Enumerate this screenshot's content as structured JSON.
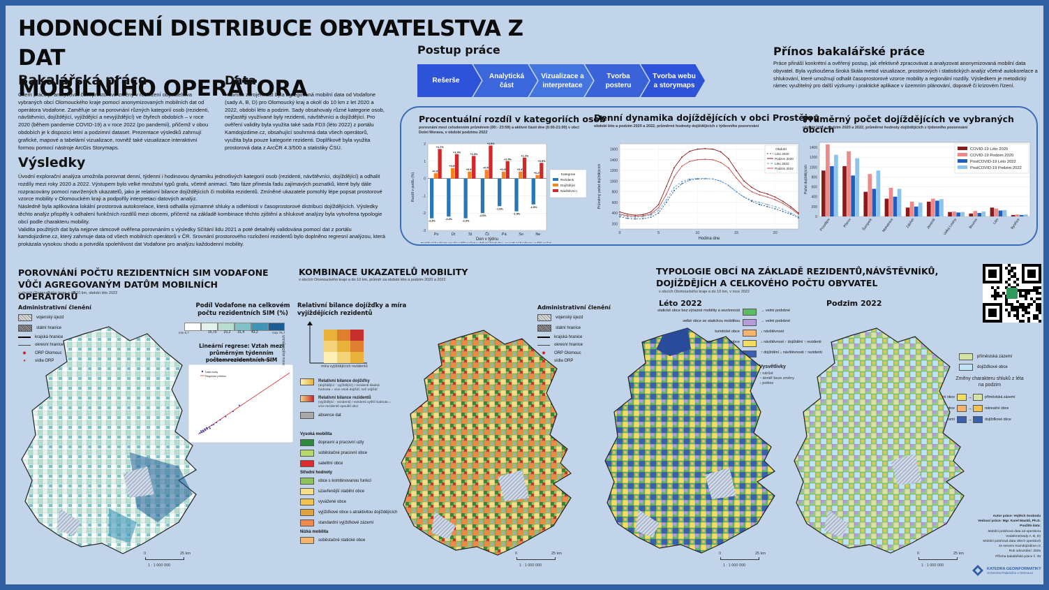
{
  "header": {
    "title_line1": "HODNOCENÍ DISTRIBUCE OBYVATELSTVA Z DAT",
    "title_line2": "MOBILNÍHO OPERÁTORA"
  },
  "bakalarska": {
    "heading": "Bakalářská práce",
    "text": "Cílem práce je analyzovat časoprostorové změny v rozložení obyvatelstva vybraných obcí Olomouckého kraje pomocí anonymizovaných mobilních dat od operátora Vodafone. Zaměřuje se na porovnání různých kategorií osob (rezidenti, návštěvníci, dojíždějící, vyjíždějící a nevyjíždějící) ve čtyřech obdobích – v roce 2020 (během pandemie COVID-19) a v roce 2022 (po pandemii), přičemž v obou obdobích je k dispozici letní a podzimní dataset. Prezentace výsledků zahrnují grafické, mapové a tabelární vizualizace, rovněž také vizualizace interaktivní formou pomocí nástroje ArcGis Storymaps."
  },
  "data_section": {
    "heading": "Data",
    "text": "Hlavním zdrojem dat byla agregovaná mobilní data od Vodafone (sady A, B, D) pro Olomoucký kraj a okolí do 10 km z let 2020 a 2022, období léto a podzim. Sady obsahovaly různé kategorie osob, nejčastěji využívané byly rezidenti, návštěvníci a dojíždějící. Pro ověření validity byla využita také sada FD3 (léto 2022) z portálu Kamdojizdime.cz, obsahující souhrnná data všech operátorů, využita byla pouze kategorie rezidenti. Doplňkově byla využita prostorová data z ArcČR 4.3/500 a statistiky ČSÚ."
  },
  "vysledky": {
    "heading": "Výsledky",
    "text1": "Úvodní explorační analýza umožnila porovnat denní, týdenní i hodinovou dynamiku jednotlivých kategorií osob (rezidenti, návštěvníci, dojíždějící) a odhalit rozdíly mezi roky 2020 a 2022. Výstupem bylo velké množství typů grafu, včetně animací. Tato fáze přinesla řadu zajímavých poznatků, které byly dále rozpracovány pomocí navržených ukazatelů, jako je relativní bilance dojíždějících či mobilita rezidentů. Zmíněné ukazatele pomohly lépe popsat prostorové vzorce mobility v Olomouckém kraji a podpořily interpretaci datových analýz.",
    "text2": "Následně byla aplikována lokální prostorová autokorelace, která odhalila významné shluky a odlehlosti v časoprostorové distribuci dojíždějících. Výsledky těchto analýz přispěly k odhalení funkčních rozdílů mezi obcemi, přičemž na základě kombinace těchto zjištění a shlukové analýzy byla vytvořena typologie obcí podle charakteru mobility.",
    "text3": "Validita použitých dat byla nejprve rámcově ověřena porovnáním s výsledky Sčítání lidu 2021 a poté detailněji validována pomocí dat z portálu kamdojizdime.cz, který zahrnuje data od všech mobilních operátorů v ČR. Srovnání prostorového rozložení rezidentů bylo doplněno regresní analýzou, která prokázala vysokou shodu a potvrdila spolehlivost dat Vodafone pro analýzu každodenní mobility."
  },
  "postup": {
    "heading": "Postup práce",
    "steps": [
      "Rešerše",
      "Analytická část",
      "Vizualizace a interpretace",
      "Tvorba posteru",
      "Tvorba webu a storymaps"
    ]
  },
  "prinos": {
    "heading": "Přínos bakalářské práce",
    "text": "Práce přináší konkrétní a ověřený postup, jak efektivně zpracovávat a analyzovat anonymizovaná mobilní data obyvatel. Byla vyzkoušena široká škála metod vizualizace, prostorových i statistických analýz včetně autokorelace a shlukování, které umožnují odhalit časoprostorové vzorce mobility a regionální rozdíly. Výsledkem je metodický rámec využitelný pro další výzkumy i praktické aplikace v územním plánování, dopravě či krizovém řízení."
  },
  "chart1": {
    "title": "Procentuální rozdíl v kategoriích osob",
    "subtitle": "porovnání mezi celodenním průměrem (00:- 23:59) a aktivní částí dne (6:00-21:00) v obci Dolní Morava, v období podzimu 2022",
    "legend_title": "Kategorie",
    "note": "Pozitivní hodnota značí vyšší počet v aktivní části dne, negativní hodnota vyšší počet v celodenním průměru",
    "xlabel": "Den v týdnu",
    "ylabel": "Rozdíl v podílu (%)",
    "chart_data": {
      "type": "bar",
      "categories": [
        "Po",
        "Út",
        "St",
        "Čt",
        "Pá",
        "So",
        "Ne"
      ],
      "ylim": [
        -3,
        2
      ],
      "yticks": [
        "-3",
        "-2",
        "-1",
        "0",
        "1",
        "2"
      ],
      "series": [
        {
          "name": "Rezidenti",
          "color": "#2878b8",
          "values": [
            -2.3,
            -2.2,
            -2.3,
            -2.0,
            -1.6,
            -1.9,
            -1.5
          ]
        },
        {
          "name": "Dojíždějící",
          "color": "#f5841f",
          "values": [
            0.3,
            0.6,
            0.4,
            0.5,
            0.4,
            0.4,
            0.2
          ]
        },
        {
          "name": "Návštěvníci",
          "color": "#d62728",
          "values": [
            1.7,
            1.4,
            1.3,
            1.9,
            1.0,
            1.2,
            0.9
          ]
        }
      ],
      "labels": [
        [
          "-2.3%",
          "-2.2%",
          "-2.3%",
          "-2.0%",
          "-1.6%",
          "-1.9%",
          "-1.5%"
        ],
        [
          "+0.3%",
          "+0.6%",
          "+0.4%",
          "+0.5%",
          "+0.4%",
          "+0.4%",
          "+0.2%"
        ],
        [
          "+1.7%",
          "+1.4%",
          "+1.3%",
          "+1.9%",
          "+1.0%",
          "+1.2%",
          "+0.9%"
        ]
      ]
    }
  },
  "chart2": {
    "title": "Denní dynamika dojíždějících v obci Prostějov",
    "subtitle": "období léto a podzim 2020 a 2022, průměrné hodnoty dojíždějících z týdenního pozorování",
    "xlabel": "Hodina dne",
    "ylabel": "Průměrný počet dojíždějících",
    "legend_title": "Období",
    "chart_data": {
      "type": "line",
      "x": [
        0,
        1,
        2,
        3,
        4,
        5,
        6,
        7,
        8,
        9,
        10,
        11,
        12,
        13,
        14,
        15,
        16,
        17,
        18,
        19,
        20,
        21,
        22,
        23
      ],
      "ylim": [
        100,
        1700
      ],
      "yticks": [
        200,
        400,
        600,
        800,
        1000,
        1200,
        1400,
        1600
      ],
      "xticks": [
        0,
        5,
        10,
        15,
        20
      ],
      "series": [
        {
          "name": "Léto 2020",
          "color": "#1f4e8c",
          "dash": "2,2",
          "values": [
            330,
            300,
            290,
            295,
            320,
            400,
            600,
            820,
            950,
            1020,
            1040,
            1045,
            1040,
            1000,
            920,
            800,
            700,
            620,
            560,
            520,
            480,
            430,
            380,
            310
          ]
        },
        {
          "name": "Podzim 2020",
          "color": "#8b1a1a",
          "dash": "",
          "values": [
            420,
            380,
            360,
            370,
            420,
            560,
            900,
            1250,
            1450,
            1560,
            1600,
            1610,
            1600,
            1550,
            1420,
            1200,
            1000,
            880,
            800,
            760,
            700,
            620,
            520,
            400
          ]
        },
        {
          "name": "Léto 2022",
          "color": "#5aa0d8",
          "dash": "3,2",
          "values": [
            360,
            330,
            320,
            330,
            360,
            450,
            650,
            880,
            990,
            1040,
            1050,
            1050,
            1040,
            1000,
            920,
            800,
            700,
            640,
            600,
            560,
            520,
            470,
            400,
            330
          ]
        },
        {
          "name": "Podzim 2022",
          "color": "#c0504d",
          "dash": "",
          "values": [
            380,
            350,
            340,
            350,
            380,
            500,
            750,
            1080,
            1280,
            1370,
            1400,
            1410,
            1400,
            1350,
            1250,
            1060,
            900,
            800,
            740,
            700,
            650,
            580,
            490,
            380
          ]
        }
      ]
    }
  },
  "chart3": {
    "title": "Průměrný počet dojíždějících ve vybraných obcích",
    "subtitle": "období léto a podzim 2020 a 2022, průměrné hodnoty dojíždějících z týdenního pozorování",
    "ylabel": "Počet dojíždějících",
    "chart_data": {
      "type": "bar",
      "categories": [
        "Prostějov",
        "Přerov",
        "Šumperk",
        "Mohelnice",
        "Zábřeh",
        "Jeseník",
        "Velká Losiny",
        "Bouzov",
        "Litin",
        "Bystřice"
      ],
      "ylim": [
        0,
        1500
      ],
      "yticks": [
        0,
        200,
        400,
        600,
        800,
        1000,
        1200,
        1400
      ],
      "series": [
        {
          "name": "COVID-19 Léto 2020",
          "color": "#8b1a1a",
          "values": [
            930,
            1020,
            500,
            360,
            180,
            300,
            90,
            60,
            180,
            30
          ]
        },
        {
          "name": "COVID-19 Podzim 2020",
          "color": "#ec8a8a",
          "values": [
            1460,
            1320,
            860,
            580,
            300,
            360,
            100,
            110,
            160,
            40
          ]
        },
        {
          "name": "PostCOVID-19 Léto 2022",
          "color": "#1f5fbf",
          "values": [
            1020,
            830,
            560,
            400,
            200,
            320,
            80,
            70,
            120,
            30
          ]
        },
        {
          "name": "PostCOVID-19 Podzim 2022",
          "color": "#8cc4ee",
          "values": [
            1250,
            1180,
            930,
            560,
            280,
            350,
            90,
            100,
            130,
            40
          ]
        }
      ]
    }
  },
  "section_left": {
    "title": "POROVNÁNÍ POČTU REZIDENTNÍCH SIM VODAFONE VŮČI AGREGOVANÝM DATŮM MOBILNÍCH OPERÁTORŮ",
    "subtitle": "v obcích Olomouckého kraje a do 10 km, období léto 2022",
    "admin_heading": "Administrativní členění",
    "admin_items": [
      "vojenský újezd",
      "státní hranice",
      "krajská hranice",
      "okresní hranice",
      "ORP Olomouc",
      "sídla ORP"
    ],
    "share_heading": "Podíl Vodafone na celkovém počtu rezidentních SIM (%)",
    "share_bins": [
      "15,75",
      "23,2",
      "31,4",
      "43,2"
    ],
    "share_min": "min 8,7",
    "share_max": "max 75,7",
    "share_colors": [
      "#ffffff",
      "#e3f1ec",
      "#b8dcd0",
      "#7fc1c7",
      "#3e95b8",
      "#1b5c94"
    ],
    "regression_title": "Lineární regrese: Vztah mezi průměrným týdenním počtemrezidentních SIM",
    "regression_sub": "Vodafone ve kamdojizdime.cz, léto 2022",
    "regression_legend": [
      "Data body",
      "Regresní přímka"
    ],
    "scale_0": "0",
    "scale_25": "25 km",
    "scale_ratio": "1 : 1 000 000"
  },
  "section_mid": {
    "title": "KOMBINACE UKAZATELŮ MOBILITY",
    "subtitle": "v obcích Olomouckého kraje a do 10 km, průměr za období léto a podzim 2020 a 2022",
    "matrix_title": "Relativní bilance dojížďky a míra vyjíždějících rezidentů",
    "axis_y": "míra dojíždějících",
    "axis_x": "míra vyjíždějících rezidentů",
    "bal_pos": "Relativní bilance dojížďky",
    "bal_pos_sub": "(dojíždějící - vyjíždějící) / rezidenti kladná hodnota = více osob dojíždí, než odjíždí",
    "bal_neg": "Relativní bilance rezidentů",
    "bal_neg_sub": "(vyjíždějící - rezidenti) / rezidenti vyšší hodnota = více rezidentů opouští obci",
    "absence": "absence dat",
    "admin_heading": "Administrativní členění",
    "admin_items": [
      "vojenský újezd",
      "státní hranice",
      "krajská hranice",
      "okresní hranice",
      "ORP Olomouc",
      "sídla ORP"
    ],
    "groups": [
      {
        "name": "Vysoká mobilita",
        "items": [
          {
            "label": "dopravní a pracovní uzly",
            "color": "#2e8b3c"
          },
          {
            "label": "soběstačné pracovní obce",
            "color": "#b5d96a"
          },
          {
            "label": "satelitní obce",
            "color": "#d92b2b"
          }
        ]
      },
      {
        "name": "Střední hodnoty",
        "items": [
          {
            "label": "obce s kombinovanou funkcí",
            "color": "#8fc45a"
          },
          {
            "label": "uzavřenější stabilní obce",
            "color": "#f7dc8a"
          },
          {
            "label": "vyvážené obce",
            "color": "#f3c24e"
          },
          {
            "label": "vyjížďkové obce s atraktivitou dojíždějících",
            "color": "#e3a33c"
          },
          {
            "label": "standardní vyjížďkové zázemí",
            "color": "#f08a4b"
          }
        ]
      },
      {
        "name": "Nízká mobilita",
        "items": [
          {
            "label": "soběstačné statické obce",
            "color": "#f6b36b"
          }
        ]
      }
    ],
    "scale_0": "0",
    "scale_25": "25 km",
    "scale_ratio": "1 : 1 000 000"
  },
  "section_right": {
    "title": "TYPOLOGIE OBCÍ NA ZÁKLADĚ REZIDENTŮ,NÁVŠTĚVNÍKŮ, DOJÍŽDĚJÍCH A CELKOVÉHO POČTU OBYVATEL",
    "subtitle": "v obcích Olomouckého kraje a do 10 km, v roce 2022",
    "leto": "Léto 2022",
    "podzim": "Podzim 2022",
    "types": [
      {
        "label": "statické obce bez výrazné mobility a sezónnosti",
        "color": "#5dbb63",
        "note": "→ velmi podobné"
      },
      {
        "label": "velké obce se statickou mobilitou",
        "color": "#b39ddb",
        "note": "→ velmi podobné"
      },
      {
        "label": "turistické obce",
        "color": "#f6b36b",
        "note": "↓ návštěvnost"
      },
      {
        "label": "letní rekreační obce",
        "color": "#f3dc62",
        "note": "↓ návštěvnost ↑ dojíždění ↑ rezidenti"
      },
      {
        "label": "letní obytné zázemí",
        "color": "#3a5fb0",
        "note": "↑ dojíždění ↓ návštěvnosti ↑ rezidenti"
      }
    ],
    "vysvetlivky": "Vysvětlivky",
    "vys_items": [
      "↑ nárůst",
      "~ téměř beze změny",
      "↓ pokles"
    ],
    "podzim_types": [
      {
        "label": "příměstská zázemí",
        "color": "#d7e3a0"
      },
      {
        "label": "dojížďkové obce",
        "color": "#bfe3f5"
      }
    ],
    "changes_title": "Změny charakteru shluků z léta na podzim",
    "changes": [
      {
        "from": "letní rekreační obce",
        "c1": "#f3dc62",
        "c2": "#d7e3a0",
        "to": "příměstská zázemí"
      },
      {
        "from": "turistické obce",
        "c1": "#f6b36b",
        "c2": "#f3c24e",
        "to": "rekreační obce"
      },
      {
        "from": "letní obytné zázemí",
        "c1": "#3a5fb0",
        "c2": "#3a5fb0",
        "to": "dojížďkové obce"
      }
    ],
    "scale_0": "0",
    "scale_25": "25 km",
    "scale_ratio": "1 : 1 000 000"
  },
  "credits": [
    "Autor práce: Vojtěch Svoboda",
    "Vedoucí práce: Mgr. Karel Macků, Ph.D.",
    "Použitá data:",
    "Mobilní polohová data od operátora",
    "Vodafone(sady A, B, D)",
    "Mobilní polohová data všech operátorů",
    "ze serveru Kamdojizdime.cz",
    "Rok odevzdání: 2025",
    "Příloha bakalářské práce č. 39"
  ],
  "logo_text": [
    "KATEDRA GEOINFORMATIKY",
    "Univerzita Palackého v Olomouci"
  ],
  "colors": {
    "accent": "#2f5fa0",
    "chevron": "#3158d8",
    "background": "#c2d4ea"
  }
}
